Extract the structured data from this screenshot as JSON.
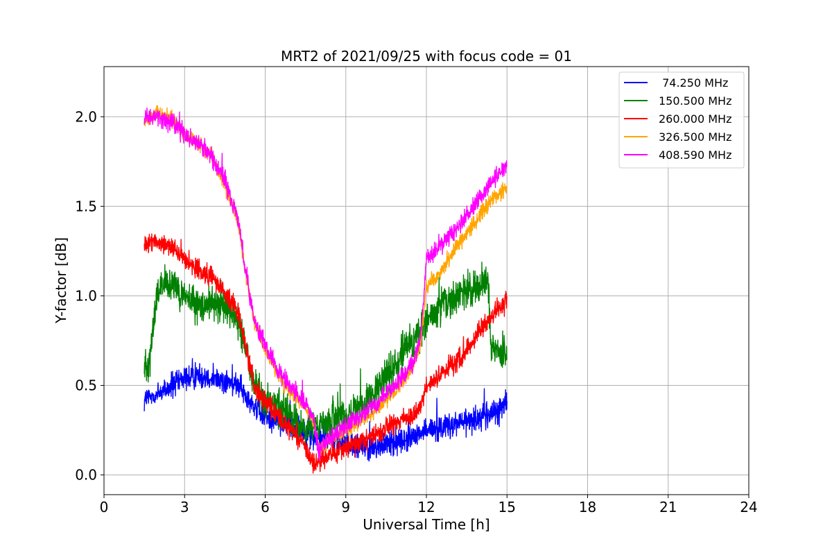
{
  "chart_data": {
    "type": "line",
    "title": "MRT2 of 2021/09/25 with focus code = 01",
    "xlabel": "Universal Time [h]",
    "ylabel": "Y-factor [dB]",
    "xlim": [
      0,
      24
    ],
    "ylim": [
      -0.11,
      2.28
    ],
    "xticks": [
      0,
      3,
      6,
      9,
      12,
      15,
      18,
      21,
      24
    ],
    "yticks": [
      0.0,
      0.5,
      1.0,
      1.5,
      2.0
    ],
    "xtick_labels": [
      "0",
      "3",
      "6",
      "9",
      "12",
      "15",
      "18",
      "21",
      "24"
    ],
    "ytick_labels": [
      "0.0",
      "0.5",
      "1.0",
      "1.5",
      "2.0"
    ],
    "grid": true,
    "legend_position": "top-right",
    "series": [
      {
        "name": " 74.250 MHz",
        "color": "#0000ff",
        "noise": 0.05,
        "x": [
          1.5,
          2.0,
          2.5,
          3.0,
          3.5,
          4.0,
          4.5,
          5.0,
          5.5,
          6.0,
          6.5,
          7.0,
          7.5,
          8.0,
          8.5,
          9.0,
          9.5,
          10.0,
          10.5,
          11.0,
          11.5,
          12.0,
          12.5,
          13.0,
          13.5,
          14.0,
          14.5,
          15.0
        ],
        "y": [
          0.42,
          0.45,
          0.5,
          0.53,
          0.56,
          0.55,
          0.52,
          0.5,
          0.4,
          0.33,
          0.3,
          0.28,
          0.25,
          0.2,
          0.2,
          0.18,
          0.16,
          0.15,
          0.17,
          0.19,
          0.21,
          0.25,
          0.27,
          0.28,
          0.3,
          0.32,
          0.35,
          0.4
        ]
      },
      {
        "name": "150.500 MHz",
        "color": "#008000",
        "noise": 0.07,
        "x": [
          1.5,
          1.7,
          1.9,
          2.0,
          2.5,
          3.0,
          3.5,
          4.0,
          4.5,
          5.0,
          5.3,
          5.5,
          6.0,
          6.5,
          7.0,
          7.5,
          8.0,
          8.5,
          9.0,
          9.5,
          10.0,
          10.5,
          11.0,
          11.5,
          12.0,
          12.5,
          13.0,
          13.5,
          14.0,
          14.3,
          14.4,
          15.0
        ],
        "y": [
          0.6,
          0.65,
          0.9,
          1.05,
          1.05,
          1.0,
          0.95,
          0.95,
          0.95,
          0.85,
          0.7,
          0.55,
          0.42,
          0.38,
          0.32,
          0.25,
          0.28,
          0.3,
          0.32,
          0.38,
          0.45,
          0.55,
          0.65,
          0.75,
          0.85,
          0.93,
          0.98,
          1.02,
          1.05,
          1.1,
          0.72,
          0.68
        ]
      },
      {
        "name": "260.000 MHz",
        "color": "#ff0000",
        "noise": 0.04,
        "x": [
          1.5,
          2.0,
          2.5,
          3.0,
          3.5,
          4.0,
          4.5,
          5.0,
          5.3,
          5.6,
          6.0,
          6.5,
          7.0,
          7.5,
          7.8,
          8.0,
          8.5,
          9.0,
          9.5,
          10.0,
          10.5,
          11.0,
          11.5,
          11.8,
          12.0,
          12.5,
          13.0,
          13.5,
          14.0,
          14.5,
          15.0
        ],
        "y": [
          1.28,
          1.3,
          1.28,
          1.2,
          1.15,
          1.1,
          1.02,
          0.9,
          0.7,
          0.5,
          0.4,
          0.32,
          0.25,
          0.15,
          0.05,
          0.08,
          0.12,
          0.15,
          0.18,
          0.22,
          0.26,
          0.3,
          0.32,
          0.38,
          0.5,
          0.55,
          0.62,
          0.7,
          0.8,
          0.9,
          0.98
        ]
      },
      {
        "name": "326.500 MHz",
        "color": "#ffa500",
        "noise": 0.03,
        "x": [
          1.5,
          2.0,
          2.5,
          3.0,
          3.5,
          4.0,
          4.5,
          5.0,
          5.3,
          5.6,
          6.0,
          6.5,
          7.0,
          7.5,
          7.8,
          8.0,
          8.5,
          9.0,
          9.5,
          10.0,
          10.5,
          11.0,
          11.5,
          11.8,
          12.0,
          12.5,
          13.0,
          13.5,
          14.0,
          14.5,
          15.0
        ],
        "y": [
          1.98,
          2.02,
          2.0,
          1.9,
          1.85,
          1.78,
          1.62,
          1.4,
          1.1,
          0.85,
          0.7,
          0.55,
          0.45,
          0.38,
          0.3,
          0.15,
          0.2,
          0.25,
          0.3,
          0.35,
          0.42,
          0.5,
          0.6,
          0.75,
          1.05,
          1.12,
          1.25,
          1.35,
          1.45,
          1.55,
          1.6
        ]
      },
      {
        "name": "408.590 MHz",
        "color": "#ff00ff",
        "noise": 0.035,
        "x": [
          1.5,
          2.0,
          2.5,
          3.0,
          3.5,
          4.0,
          4.5,
          5.0,
          5.3,
          5.6,
          6.0,
          6.5,
          7.0,
          7.5,
          7.8,
          8.0,
          8.5,
          9.0,
          9.5,
          10.0,
          10.5,
          11.0,
          11.5,
          11.8,
          12.0,
          12.5,
          13.0,
          13.5,
          14.0,
          14.5,
          15.0
        ],
        "y": [
          1.99,
          2.0,
          1.97,
          1.9,
          1.85,
          1.78,
          1.65,
          1.42,
          1.1,
          0.85,
          0.72,
          0.58,
          0.48,
          0.4,
          0.32,
          0.12,
          0.22,
          0.27,
          0.32,
          0.38,
          0.45,
          0.52,
          0.62,
          0.78,
          1.2,
          1.28,
          1.35,
          1.45,
          1.55,
          1.65,
          1.72
        ]
      }
    ]
  }
}
